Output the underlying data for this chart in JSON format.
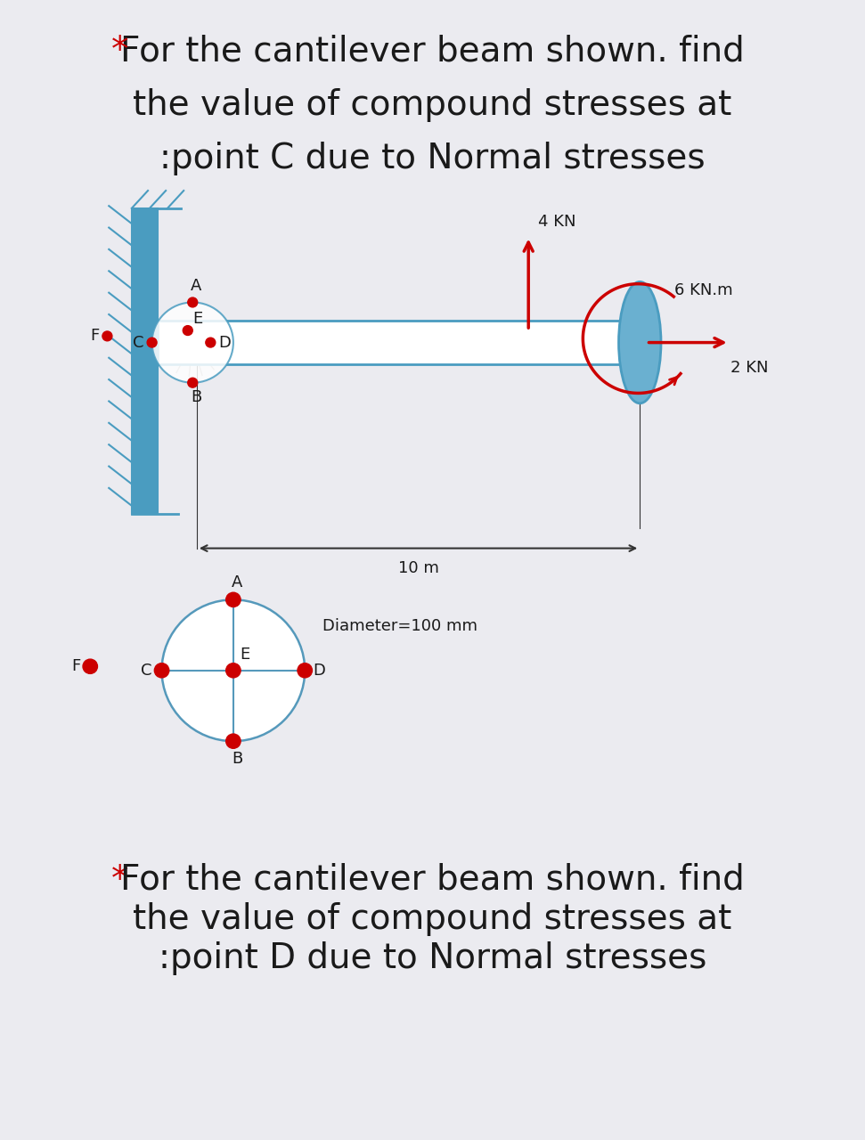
{
  "bg_color": "#ebebf0",
  "panel_color": "#ffffff",
  "title1_line2": "the value of compound stresses at",
  "title1_line3": ":point C due to Normal stresses",
  "title1_star_text": "* For the cantilever beam shown. find",
  "title2_star_text": "* For the cantilever beam shown. find",
  "title2_line2": "the value of compound stresses at",
  "title2_line3": ":point D due to Normal stresses",
  "star_color": "#cc0000",
  "text_color": "#1a1a1a",
  "beam_color": "#4a9cc0",
  "wall_color": "#4a9cc0",
  "hatch_color": "#4a9cc0",
  "arrow_color": "#cc0000",
  "dot_color": "#cc0000",
  "ellipse_color": "#6ab0d0",
  "force_4kn": "4 KN",
  "force_6knm": "6 KN.m",
  "force_2kn": "2 KN",
  "length_label": "10 m",
  "diameter_label": "Diameter=100 mm",
  "title_fontsize": 28,
  "label_fontsize": 13,
  "annot_fontsize": 13
}
